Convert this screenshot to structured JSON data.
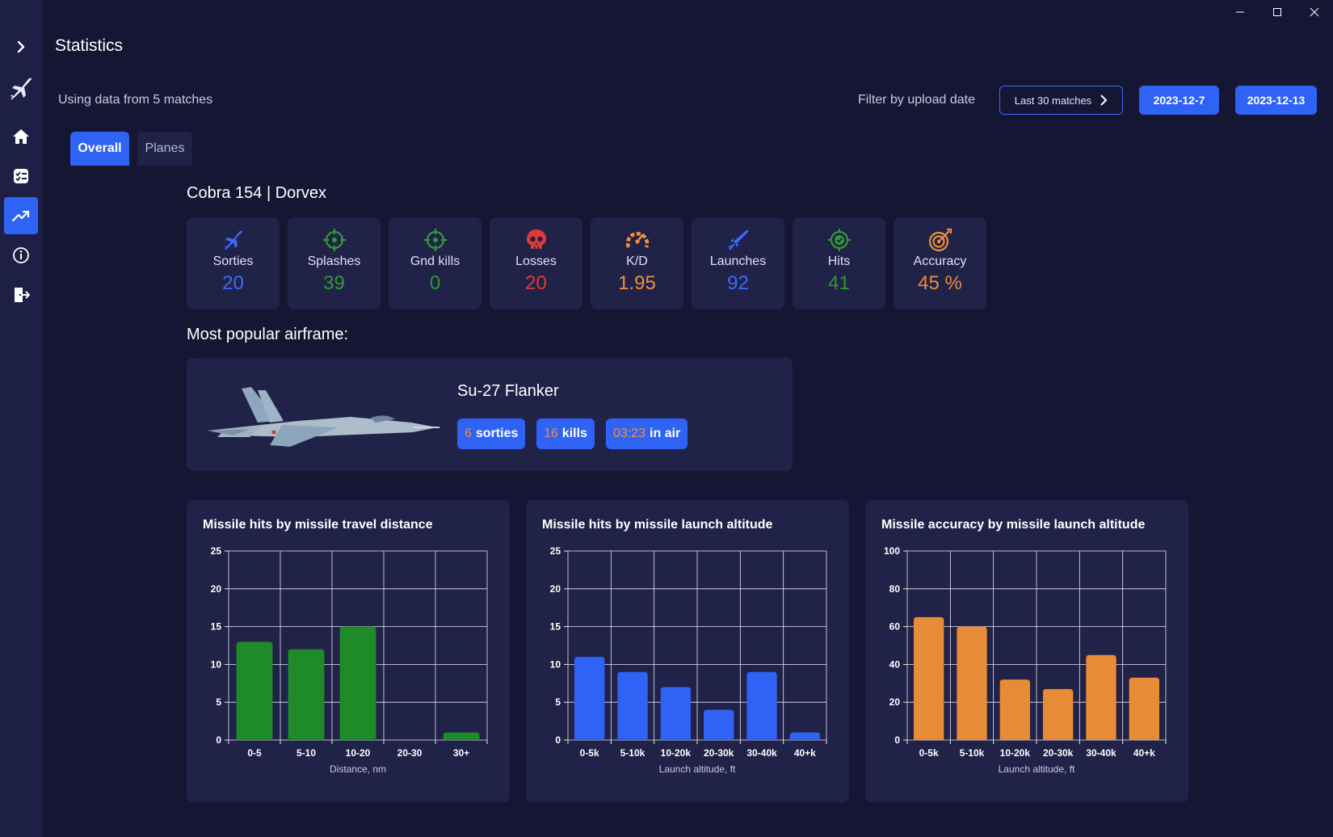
{
  "window": {
    "title": "Statistics"
  },
  "sidebar": {
    "items": [
      {
        "name": "expand",
        "icon": "chevron-right-icon"
      },
      {
        "name": "logo",
        "icon": "jet-icon"
      },
      {
        "name": "home",
        "icon": "home-icon"
      },
      {
        "name": "tasks",
        "icon": "checklist-icon"
      },
      {
        "name": "statistics",
        "icon": "trending-up-icon",
        "active": true
      },
      {
        "name": "info",
        "icon": "info-icon"
      },
      {
        "name": "logout",
        "icon": "exit-icon"
      }
    ]
  },
  "header": {
    "using_data": "Using data from 5 matches",
    "filter_label": "Filter by upload date",
    "filter_last": "Last 30 matches",
    "date_from": "2023-12-7",
    "date_to": "2023-12-13"
  },
  "tabs": [
    {
      "label": "Overall",
      "active": true
    },
    {
      "label": "Planes",
      "active": false
    }
  ],
  "player": {
    "name": "Cobra 154 | Dorvex"
  },
  "stats": [
    {
      "label": "Sorties",
      "value": "20",
      "color": "#3d6bff",
      "icon": "jet-icon"
    },
    {
      "label": "Splashes",
      "value": "39",
      "color": "#2f9a32",
      "icon": "crosshair-icon"
    },
    {
      "label": "Gnd kills",
      "value": "0",
      "color": "#2f9a32",
      "icon": "crosshair-icon"
    },
    {
      "label": "Losses",
      "value": "20",
      "color": "#e0393b",
      "icon": "skull-icon"
    },
    {
      "label": "K/D",
      "value": "1.95",
      "color": "#f0903c",
      "icon": "gauge-icon"
    },
    {
      "label": "Launches",
      "value": "92",
      "color": "#3d6bff",
      "icon": "missile-icon"
    },
    {
      "label": "Hits",
      "value": "41",
      "color": "#2f9a32",
      "icon": "target-check-icon"
    },
    {
      "label": "Accuracy",
      "value": "45 %",
      "color": "#f0903c",
      "icon": "bullseye-icon"
    }
  ],
  "popular": {
    "title": "Most popular airframe:",
    "name": "Su-27 Flanker",
    "sorties_num": "6",
    "sorties_label": "sorties",
    "kills_num": "16",
    "kills_label": "kills",
    "air_num": "03:23",
    "air_label": "in air"
  },
  "chart_data": [
    {
      "type": "bar",
      "title": "Missile hits by missile travel distance",
      "categories": [
        "0-5",
        "5-10",
        "10-20",
        "20-30",
        "30+"
      ],
      "values": [
        13,
        12,
        15,
        0,
        1
      ],
      "xlabel": "Distance, nm",
      "ylabel": "",
      "ylim": [
        0,
        25
      ],
      "yticks": [
        0,
        5,
        10,
        15,
        20,
        25
      ],
      "color": "#1f8a28",
      "grid": true
    },
    {
      "type": "bar",
      "title": "Missile hits by missile launch altitude",
      "categories": [
        "0-5k",
        "5-10k",
        "10-20k",
        "20-30k",
        "30-40k",
        "40+k"
      ],
      "values": [
        11,
        9,
        7,
        4,
        9,
        1
      ],
      "xlabel": "Launch altitude, ft",
      "ylabel": "",
      "ylim": [
        0,
        25
      ],
      "yticks": [
        0,
        5,
        10,
        15,
        20,
        25
      ],
      "color": "#2f63f5",
      "grid": true
    },
    {
      "type": "bar",
      "title": "Missile accuracy by missile launch altitude",
      "categories": [
        "0-5k",
        "5-10k",
        "10-20k",
        "20-30k",
        "30-40k",
        "40+k"
      ],
      "values": [
        65,
        60,
        32,
        27,
        45,
        33
      ],
      "xlabel": "Launch altitude, ft",
      "ylabel": "",
      "ylim": [
        0,
        100
      ],
      "yticks": [
        0,
        20,
        40,
        60,
        80,
        100
      ],
      "color": "#e88b36",
      "grid": true
    }
  ]
}
